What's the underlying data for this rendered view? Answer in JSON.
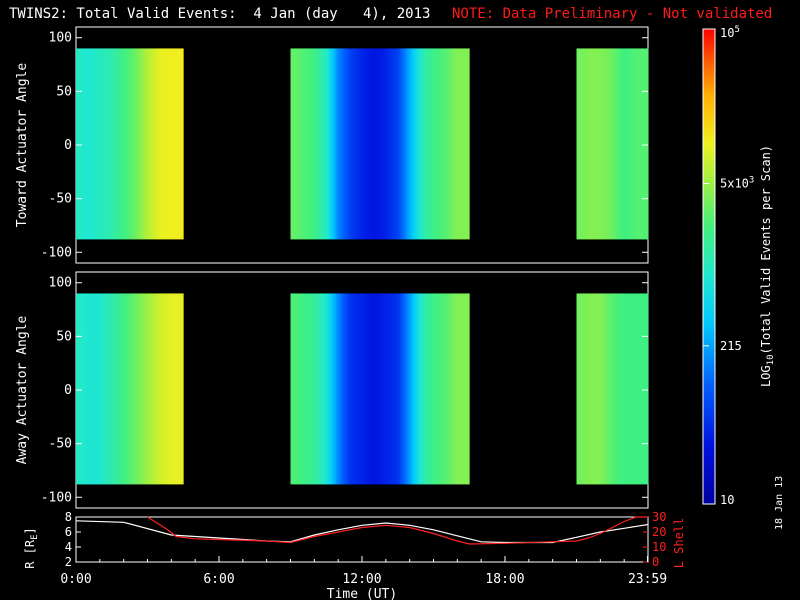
{
  "header": {
    "title": "TWINS2: Total Valid Events:  4 Jan (day   4), 2013",
    "note": "NOTE: Data Preliminary - Not validated"
  },
  "footer_stamp": "18 Jan 13",
  "colors": {
    "title": "#ffffff",
    "note": "#ff1a1a",
    "lshell": "#ff2020",
    "r_line": "#ffffff"
  },
  "chart_data": [
    {
      "type": "heatmap",
      "panel": "top",
      "ylabel": "Toward Actuator Angle",
      "ylim": [
        -110,
        110
      ],
      "y_ticks": [
        "100",
        "50",
        "0",
        "-50",
        "-100"
      ],
      "y_tick_values": [
        100,
        50,
        0,
        -50,
        -100
      ],
      "x_range_hours": [
        0,
        24
      ],
      "angle_range": [
        -88,
        90
      ],
      "data_intervals_hours": [
        [
          0.0,
          4.5
        ],
        [
          9.0,
          16.5
        ],
        [
          21.0,
          24.0
        ]
      ],
      "time_hours": [
        0.0,
        0.5,
        1.0,
        1.5,
        2.0,
        2.5,
        3.0,
        3.5,
        4.0,
        4.5,
        9.0,
        10.0,
        10.5,
        11.0,
        11.5,
        12.0,
        12.5,
        13.0,
        13.5,
        14.0,
        14.5,
        15.0,
        15.5,
        16.0,
        16.5,
        21.0,
        21.5,
        22.0,
        22.5,
        23.0,
        23.5,
        24.0
      ],
      "log10_counts": [
        3.0,
        2.9,
        3.0,
        3.1,
        3.3,
        3.5,
        3.8,
        4.0,
        4.05,
        4.05,
        3.5,
        3.3,
        3.0,
        2.2,
        1.8,
        1.6,
        1.5,
        1.6,
        1.8,
        2.4,
        3.0,
        3.3,
        3.4,
        3.6,
        3.6,
        3.5,
        3.6,
        3.6,
        3.5,
        3.3,
        3.4,
        3.4
      ]
    },
    {
      "type": "heatmap",
      "panel": "middle",
      "ylabel": "Away Actuator Angle",
      "ylim": [
        -110,
        110
      ],
      "y_ticks": [
        "100",
        "50",
        "0",
        "-50",
        "-100"
      ],
      "y_tick_values": [
        100,
        50,
        0,
        -50,
        -100
      ],
      "x_range_hours": [
        0,
        24
      ],
      "angle_range": [
        -88,
        90
      ],
      "data_intervals_hours": [
        [
          0.0,
          4.5
        ],
        [
          9.0,
          16.5
        ],
        [
          21.0,
          24.0
        ]
      ],
      "time_hours": [
        0.0,
        0.5,
        1.0,
        1.5,
        2.0,
        2.5,
        3.0,
        3.5,
        4.0,
        4.5,
        9.0,
        10.0,
        10.5,
        11.0,
        11.5,
        12.0,
        12.5,
        13.0,
        13.5,
        14.0,
        14.5,
        15.0,
        15.5,
        16.0,
        16.5,
        21.0,
        21.5,
        22.0,
        22.5,
        23.0,
        23.5,
        24.0
      ],
      "log10_counts": [
        3.0,
        2.9,
        2.9,
        3.1,
        3.3,
        3.5,
        3.7,
        3.9,
        4.0,
        4.0,
        3.4,
        3.2,
        2.9,
        2.2,
        1.7,
        1.6,
        1.5,
        1.6,
        1.7,
        2.3,
        3.0,
        3.3,
        3.4,
        3.6,
        3.6,
        3.5,
        3.6,
        3.6,
        3.4,
        3.3,
        3.3,
        3.3
      ]
    },
    {
      "type": "line",
      "panel": "bottom",
      "xlabel": "Time (UT)",
      "x_ticks": [
        "0:00",
        "6:00",
        "12:00",
        "18:00",
        "23:59"
      ],
      "x_tick_values": [
        0,
        6,
        12,
        18,
        23.98
      ],
      "series": [
        {
          "name": "R [RE]",
          "axis": "left",
          "ylim": [
            2,
            8
          ],
          "x": [
            0,
            2,
            4,
            6,
            8,
            9,
            10,
            11,
            12,
            13,
            14,
            15,
            16,
            17,
            18,
            19,
            20,
            21,
            22,
            23,
            24
          ],
          "values": [
            7.5,
            7.3,
            5.6,
            5.2,
            4.8,
            4.7,
            5.6,
            6.3,
            6.9,
            7.2,
            6.9,
            6.3,
            5.5,
            4.7,
            4.6,
            4.6,
            4.6,
            5.3,
            6.0,
            6.5,
            7.0
          ]
        },
        {
          "name": "L Shell",
          "axis": "right",
          "ylim": [
            0,
            30
          ],
          "x": [
            3.0,
            3.8,
            4.2,
            5.0,
            6.0,
            8.0,
            9.0,
            10.0,
            11.0,
            12.0,
            13.0,
            14.0,
            15.0,
            16.0,
            16.5,
            18.0,
            20.0,
            21.0,
            21.5,
            22.0,
            22.5,
            23.0,
            23.5,
            24.0
          ],
          "values": [
            30,
            22,
            17,
            15.5,
            15,
            14,
            13,
            17,
            20,
            23,
            24.5,
            23,
            19,
            14,
            12,
            12.5,
            13.5,
            14,
            16,
            19,
            23,
            27,
            30,
            30
          ]
        }
      ],
      "left_ylabel": "R [R",
      "left_ylabel_sub": "E",
      "left_ylabel_end": "]",
      "left_y_ticks": [
        "8",
        "6",
        "4",
        "2"
      ],
      "left_y_tick_values": [
        8,
        6,
        4,
        2
      ],
      "right_ylabel": "L Shell",
      "right_y_ticks": [
        "30",
        "20",
        "10",
        "0"
      ],
      "right_y_tick_values": [
        30,
        20,
        10,
        0
      ]
    }
  ],
  "colorbar": {
    "label_main": "LOG",
    "label_sub": "10",
    "label_rest": "(Total Valid Events per Scan)",
    "ticks": [
      {
        "base": "10",
        "exp": "5",
        "value": 5.0
      },
      {
        "base": "5x10",
        "exp": "3",
        "value": 3.699
      },
      {
        "base": "215",
        "exp": "",
        "value": 2.332
      },
      {
        "base": "10",
        "exp": "",
        "value": 1.0
      }
    ],
    "range": [
      1.0,
      5.0
    ]
  }
}
